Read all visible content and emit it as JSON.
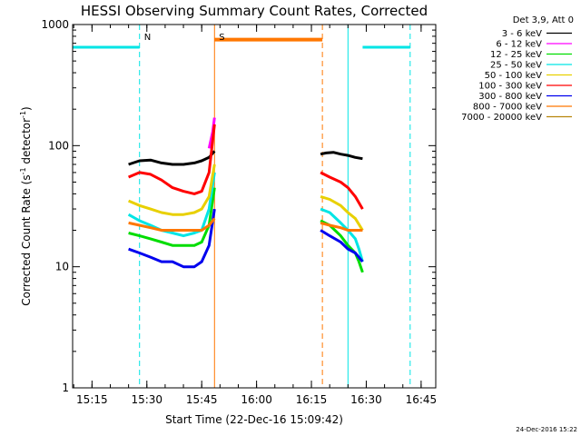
{
  "chart_data": {
    "type": "line",
    "title": "HESSI Observing Summary Count Rates, Corrected",
    "xlabel": "Start Time (22-Dec-16 15:09:42)",
    "ylabel": "Corrected Count Rate (s",
    "ylabel_sup1": "-1",
    "ylabel_mid": " detector",
    "ylabel_sup2": "-1",
    "ylabel_end": ")",
    "yscale": "log",
    "ylim": [
      1,
      1000
    ],
    "xlim": [
      "15:09:42",
      "16:49:00"
    ],
    "x_ticks": [
      "15:15",
      "15:30",
      "15:45",
      "16:00",
      "16:15",
      "16:30",
      "16:45"
    ],
    "y_ticks": [
      "1",
      "10",
      "100",
      "1000"
    ],
    "legend_title": "Det 3,9, Att 0",
    "legend_position": "top-right",
    "series": [
      {
        "name": "3 - 6 keV",
        "color": "#000000",
        "segments": [
          {
            "x": [
              "15:25",
              "15:28",
              "15:31",
              "15:34",
              "15:37",
              "15:40",
              "15:43",
              "15:45",
              "15:47",
              "15:48:30"
            ],
            "y": [
              70,
              75,
              76,
              72,
              70,
              70,
              72,
              75,
              80,
              90
            ]
          },
          {
            "x": [
              "16:17:30",
              "16:19",
              "16:21",
              "16:23",
              "16:25",
              "16:27",
              "16:29"
            ],
            "y": [
              85,
              87,
              88,
              85,
              83,
              80,
              78
            ]
          }
        ]
      },
      {
        "name": "6 - 12 keV",
        "color": "#ff00ff",
        "segments": [
          {
            "x": [
              "15:47",
              "15:48",
              "15:48:30"
            ],
            "y": [
              95,
              130,
              170
            ]
          }
        ]
      },
      {
        "name": "12 - 25 keV",
        "color": "#00dd00",
        "segments": [
          {
            "x": [
              "15:25",
              "15:28",
              "15:31",
              "15:34",
              "15:37",
              "15:40",
              "15:43",
              "15:45",
              "15:47",
              "15:48:30"
            ],
            "y": [
              19,
              18,
              17,
              16,
              15,
              15,
              15,
              16,
              22,
              45
            ]
          },
          {
            "x": [
              "16:17:30",
              "16:20",
              "16:23",
              "16:25",
              "16:27",
              "16:28",
              "16:29"
            ],
            "y": [
              24,
              22,
              18,
              15,
              13,
              11,
              9
            ]
          }
        ]
      },
      {
        "name": "25 - 50 keV",
        "color": "#00e5e5",
        "segments": [
          {
            "x": [
              "15:25",
              "15:28",
              "15:31",
              "15:34",
              "15:37",
              "15:40",
              "15:43",
              "15:45",
              "15:47",
              "15:48:30"
            ],
            "y": [
              27,
              24,
              22,
              20,
              19,
              18,
              19,
              20,
              30,
              60
            ]
          },
          {
            "x": [
              "16:17:30",
              "16:20",
              "16:23",
              "16:25",
              "16:27",
              "16:28",
              "16:29"
            ],
            "y": [
              30,
              28,
              23,
              20,
              17,
              14,
              11
            ]
          }
        ]
      },
      {
        "name": "50 - 100 keV",
        "color": "#e8d000",
        "segments": [
          {
            "x": [
              "15:25",
              "15:28",
              "15:31",
              "15:34",
              "15:37",
              "15:40",
              "15:43",
              "15:45",
              "15:47",
              "15:48:30"
            ],
            "y": [
              35,
              32,
              30,
              28,
              27,
              27,
              28,
              30,
              38,
              70
            ]
          },
          {
            "x": [
              "16:17:30",
              "16:20",
              "16:23",
              "16:25",
              "16:27",
              "16:29"
            ],
            "y": [
              38,
              36,
              32,
              28,
              25,
              20
            ]
          }
        ]
      },
      {
        "name": "100 - 300 keV",
        "color": "#ff0000",
        "segments": [
          {
            "x": [
              "15:25",
              "15:28",
              "15:31",
              "15:34",
              "15:37",
              "15:40",
              "15:43",
              "15:45",
              "15:47",
              "15:48:30"
            ],
            "y": [
              55,
              60,
              58,
              52,
              45,
              42,
              40,
              42,
              60,
              150
            ]
          },
          {
            "x": [
              "16:17:30",
              "16:20",
              "16:23",
              "16:25",
              "16:27",
              "16:29"
            ],
            "y": [
              60,
              55,
              50,
              45,
              38,
              30
            ]
          }
        ]
      },
      {
        "name": "300 - 800 keV",
        "color": "#0000ee",
        "segments": [
          {
            "x": [
              "15:25",
              "15:28",
              "15:31",
              "15:34",
              "15:37",
              "15:40",
              "15:43",
              "15:45",
              "15:47",
              "15:48:30"
            ],
            "y": [
              14,
              13,
              12,
              11,
              11,
              10,
              10,
              11,
              15,
              30
            ]
          },
          {
            "x": [
              "16:17:30",
              "16:20",
              "16:23",
              "16:25",
              "16:27",
              "16:29"
            ],
            "y": [
              20,
              18,
              16,
              14,
              13,
              11
            ]
          }
        ]
      },
      {
        "name": "800 - 7000 keV",
        "color": "#ff7700",
        "segments": [
          {
            "x": [
              "15:25",
              "15:28",
              "15:31",
              "15:34",
              "15:37",
              "15:40",
              "15:43",
              "15:45",
              "15:47",
              "15:48:30"
            ],
            "y": [
              23,
              22,
              21,
              20,
              20,
              20,
              20,
              20,
              22,
              25
            ]
          },
          {
            "x": [
              "16:17:30",
              "16:20",
              "16:23",
              "16:25",
              "16:27",
              "16:29"
            ],
            "y": [
              23,
              22,
              21,
              20,
              20,
              20
            ]
          }
        ]
      },
      {
        "name": "7000 - 20000 keV",
        "color": "#b8860b",
        "segments": []
      }
    ],
    "flags": [
      {
        "label": "N",
        "color": "#00e5e5",
        "dashed": true,
        "times": [
          "15:28",
          "16:42"
        ]
      },
      {
        "label": "S",
        "color": "#ff7700",
        "dashed": false,
        "times": [
          "15:48:30",
          "16:18"
        ]
      }
    ],
    "night_bars": [
      {
        "start": "15:09:42",
        "end": "15:28",
        "y": 650
      },
      {
        "start": "16:29",
        "end": "16:42",
        "y": 650
      }
    ],
    "saa_bar": {
      "start": "15:48:30",
      "end": "16:18",
      "y": 750
    },
    "solid_lines": [
      {
        "time": "15:09:42",
        "color": "#00e5e5"
      },
      {
        "time": "16:25",
        "color": "#00e5e5"
      },
      {
        "time": "15:48:30",
        "color": "#ff7700"
      }
    ],
    "dashed_lines": [
      {
        "time": "15:28",
        "color": "#00e5e5"
      },
      {
        "time": "16:42",
        "color": "#00e5e5"
      },
      {
        "time": "16:18",
        "color": "#ff7700"
      }
    ]
  },
  "timestamp": "24-Dec-2016 15:22"
}
